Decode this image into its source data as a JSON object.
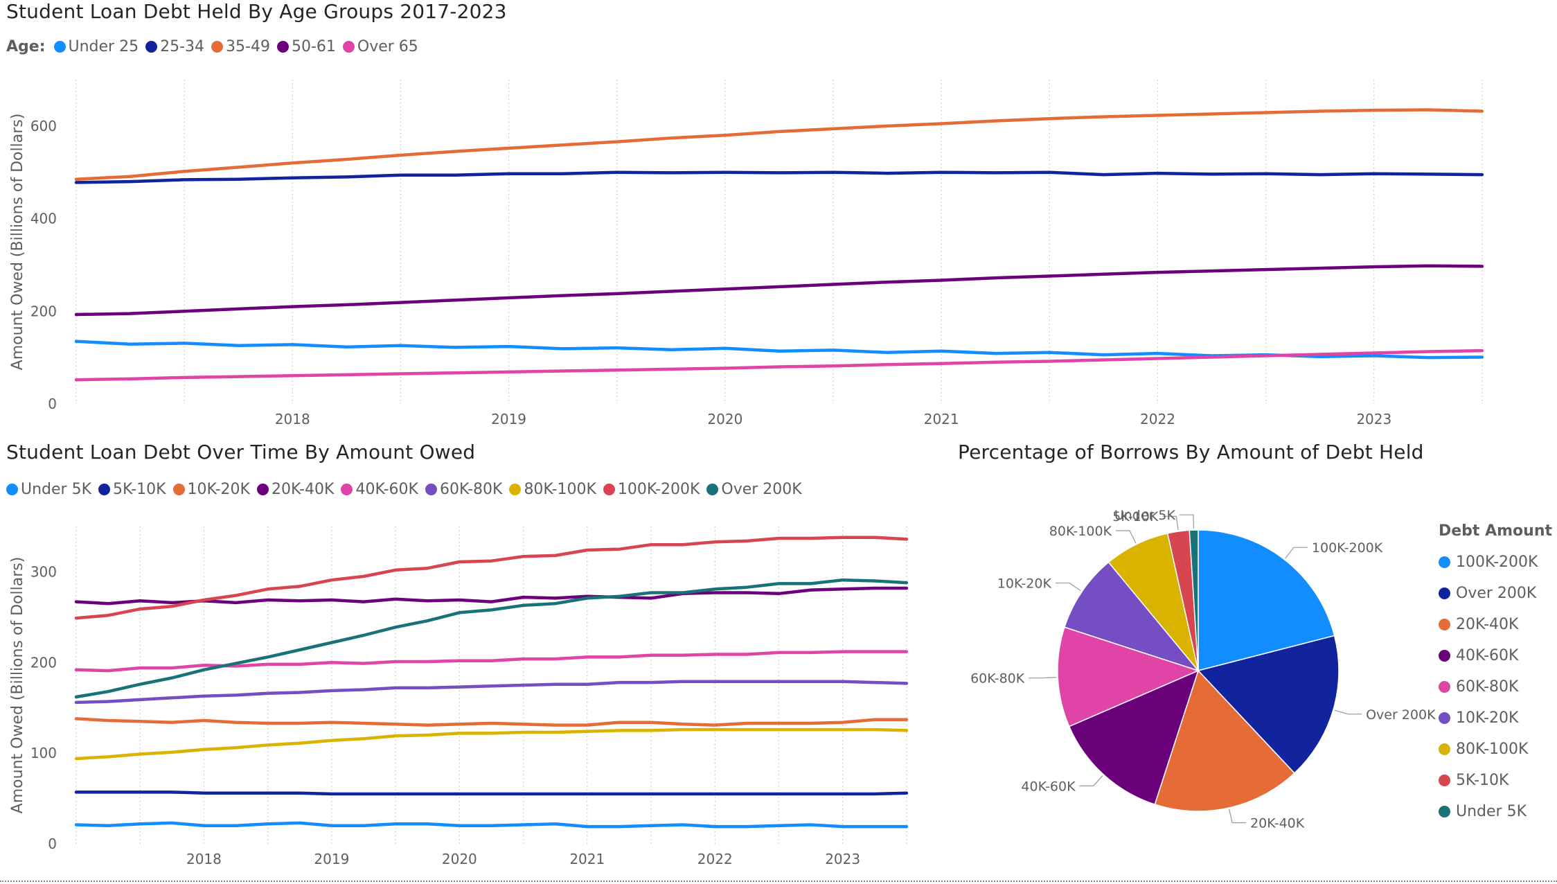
{
  "chart_data": [
    {
      "type": "line",
      "title": "Student Loan Debt Held By Age Groups 2017-2023",
      "legend_title": "Age:",
      "xlabel": "",
      "ylabel": "Amount Owed (Billions of Dollars)",
      "x_ticks": [
        "2018",
        "2019",
        "2020",
        "2021",
        "2022",
        "2023"
      ],
      "y_ticks": [
        0,
        200,
        400,
        600
      ],
      "xlim": [
        2017.0,
        2023.75
      ],
      "ylim": [
        0,
        700
      ],
      "grid": "vertical dotted",
      "legend_position": "top-left",
      "x": [
        2017.0,
        2017.25,
        2017.5,
        2017.75,
        2018.0,
        2018.25,
        2018.5,
        2018.75,
        2019.0,
        2019.25,
        2019.5,
        2019.75,
        2020.0,
        2020.25,
        2020.5,
        2020.75,
        2021.0,
        2021.25,
        2021.5,
        2021.75,
        2022.0,
        2022.25,
        2022.5,
        2022.75,
        2023.0,
        2023.25,
        2023.5
      ],
      "series": [
        {
          "name": "Under 25",
          "color": "#118DFF",
          "values": [
            135,
            129,
            131,
            126,
            128,
            123,
            126,
            122,
            124,
            119,
            121,
            117,
            120,
            114,
            116,
            111,
            114,
            109,
            111,
            106,
            109,
            104,
            106,
            102,
            104,
            100,
            101
          ]
        },
        {
          "name": "25-34",
          "color": "#12239E",
          "values": [
            478,
            480,
            484,
            485,
            488,
            490,
            494,
            494,
            497,
            497,
            500,
            499,
            500,
            499,
            500,
            498,
            500,
            499,
            500,
            495,
            498,
            496,
            497,
            495,
            497,
            496,
            495
          ]
        },
        {
          "name": "35-49",
          "color": "#E66C37",
          "values": [
            485,
            491,
            502,
            511,
            520,
            528,
            537,
            545,
            552,
            559,
            566,
            574,
            580,
            588,
            594,
            600,
            605,
            611,
            616,
            620,
            623,
            626,
            629,
            632,
            634,
            635,
            632
          ]
        },
        {
          "name": "50-61",
          "color": "#6B007B",
          "values": [
            193,
            195,
            200,
            205,
            210,
            214,
            219,
            224,
            229,
            234,
            238,
            243,
            248,
            253,
            258,
            263,
            267,
            272,
            276,
            280,
            284,
            287,
            290,
            293,
            296,
            298,
            297
          ]
        },
        {
          "name": "Over 65",
          "color": "#E044A7",
          "values": [
            52,
            54,
            57,
            59,
            61,
            63,
            65,
            67,
            69,
            71,
            73,
            75,
            77,
            80,
            82,
            85,
            87,
            90,
            92,
            95,
            98,
            101,
            104,
            107,
            110,
            113,
            115
          ]
        }
      ]
    },
    {
      "type": "line",
      "title": "Student Loan Debt Over Time By Amount Owed",
      "legend_title": "",
      "xlabel": "",
      "ylabel": "Amount Owed (Billions of Dollars)",
      "x_ticks": [
        "2018",
        "2019",
        "2020",
        "2021",
        "2022",
        "2023"
      ],
      "y_ticks": [
        0,
        100,
        200,
        300
      ],
      "xlim": [
        2017.0,
        2023.75
      ],
      "ylim": [
        0,
        350
      ],
      "grid": "vertical dotted",
      "legend_position": "top-left",
      "x": [
        2017.0,
        2017.25,
        2017.5,
        2017.75,
        2018.0,
        2018.25,
        2018.5,
        2018.75,
        2019.0,
        2019.25,
        2019.5,
        2019.75,
        2020.0,
        2020.25,
        2020.5,
        2020.75,
        2021.0,
        2021.25,
        2021.5,
        2021.75,
        2022.0,
        2022.25,
        2022.5,
        2022.75,
        2023.0,
        2023.25,
        2023.5
      ],
      "series": [
        {
          "name": "Under 5K",
          "color": "#118DFF",
          "values": [
            21,
            20,
            22,
            23,
            20,
            20,
            22,
            23,
            20,
            20,
            22,
            22,
            20,
            20,
            21,
            22,
            19,
            19,
            20,
            21,
            19,
            19,
            20,
            21,
            19,
            19,
            19
          ]
        },
        {
          "name": "5K-10K",
          "color": "#12239E",
          "values": [
            57,
            57,
            57,
            57,
            56,
            56,
            56,
            56,
            55,
            55,
            55,
            55,
            55,
            55,
            55,
            55,
            55,
            55,
            55,
            55,
            55,
            55,
            55,
            55,
            55,
            55,
            56
          ]
        },
        {
          "name": "10K-20K",
          "color": "#E66C37",
          "values": [
            138,
            136,
            135,
            134,
            136,
            134,
            133,
            133,
            134,
            133,
            132,
            131,
            132,
            133,
            132,
            131,
            131,
            134,
            134,
            132,
            131,
            133,
            133,
            133,
            134,
            137,
            137
          ]
        },
        {
          "name": "20K-40K",
          "color": "#6B007B",
          "values": [
            267,
            265,
            268,
            266,
            268,
            266,
            269,
            268,
            269,
            267,
            270,
            268,
            269,
            267,
            272,
            271,
            273,
            272,
            271,
            276,
            277,
            277,
            276,
            280,
            281,
            282,
            282
          ]
        },
        {
          "name": "40K-60K",
          "color": "#E044A7",
          "values": [
            192,
            191,
            194,
            194,
            197,
            196,
            198,
            198,
            200,
            199,
            201,
            201,
            202,
            202,
            204,
            204,
            206,
            206,
            208,
            208,
            209,
            209,
            211,
            211,
            212,
            212,
            212
          ]
        },
        {
          "name": "60K-80K",
          "color": "#744EC2",
          "values": [
            156,
            157,
            159,
            161,
            163,
            164,
            166,
            167,
            169,
            170,
            172,
            172,
            173,
            174,
            175,
            176,
            176,
            178,
            178,
            179,
            179,
            179,
            179,
            179,
            179,
            178,
            177
          ]
        },
        {
          "name": "80K-100K",
          "color": "#D9B300",
          "values": [
            94,
            96,
            99,
            101,
            104,
            106,
            109,
            111,
            114,
            116,
            119,
            120,
            122,
            122,
            123,
            123,
            124,
            125,
            125,
            126,
            126,
            126,
            126,
            126,
            126,
            126,
            125
          ]
        },
        {
          "name": "100K-200K",
          "color": "#D64550",
          "values": [
            249,
            252,
            259,
            262,
            269,
            274,
            281,
            284,
            291,
            295,
            302,
            304,
            311,
            312,
            317,
            318,
            324,
            325,
            330,
            330,
            333,
            334,
            337,
            337,
            338,
            338,
            336
          ]
        },
        {
          "name": "Over 200K",
          "color": "#197278",
          "values": [
            162,
            168,
            176,
            183,
            192,
            199,
            206,
            214,
            222,
            230,
            239,
            246,
            255,
            258,
            263,
            265,
            271,
            273,
            277,
            277,
            281,
            283,
            287,
            287,
            291,
            290,
            288
          ]
        }
      ]
    },
    {
      "type": "pie",
      "title": "Percentage of Borrows By Amount of Debt Held",
      "legend_title": "Debt Amount",
      "legend_position": "right",
      "slices": [
        {
          "label": "100K-200K",
          "value": 21.0,
          "color": "#118DFF"
        },
        {
          "label": "Over 200K",
          "value": 17.0,
          "color": "#12239E"
        },
        {
          "label": "20K-40K",
          "value": 17.0,
          "color": "#E66C37"
        },
        {
          "label": "40K-60K",
          "value": 13.5,
          "color": "#6B007B"
        },
        {
          "label": "60K-80K",
          "value": 11.5,
          "color": "#E044A7"
        },
        {
          "label": "10K-20K",
          "value": 9.0,
          "color": "#744EC2"
        },
        {
          "label": "80K-100K",
          "value": 7.5,
          "color": "#D9B300"
        },
        {
          "label": "5K-10K",
          "value": 2.5,
          "color": "#D64550"
        },
        {
          "label": "Under 5K",
          "value": 1.0,
          "color": "#197278"
        }
      ]
    }
  ]
}
